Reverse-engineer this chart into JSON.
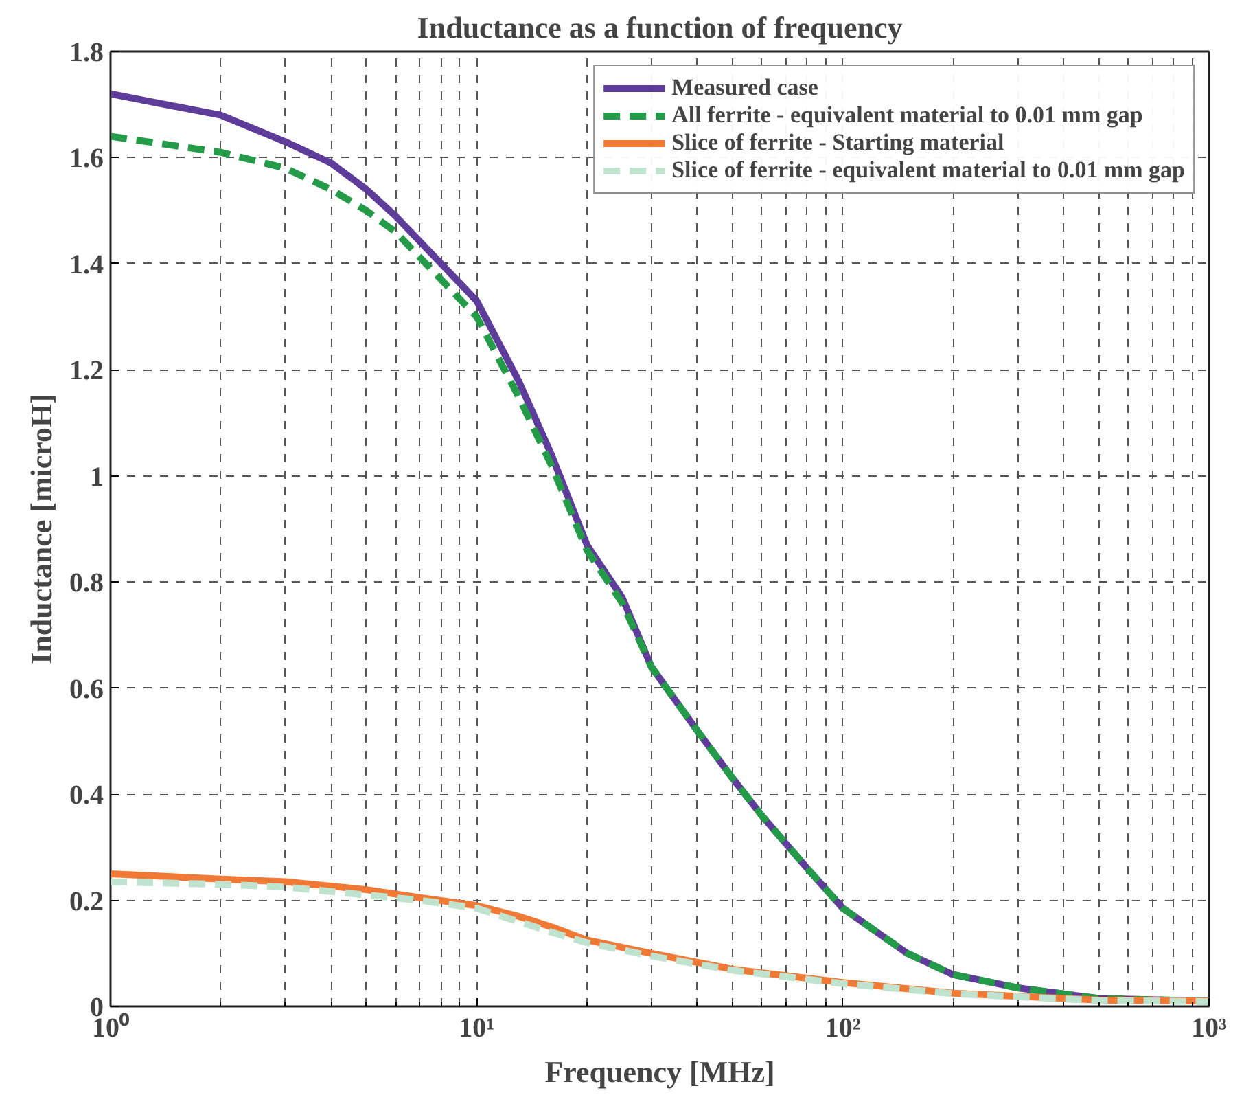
{
  "chart_data": {
    "type": "line",
    "title": "Inductance as a function of frequency",
    "xlabel": "Frequency [MHz]",
    "ylabel": "Inductance [microH]",
    "log": "x",
    "xlim": [
      1,
      1000
    ],
    "ylim": [
      0,
      1.8
    ],
    "xticks": [
      {
        "value": 1,
        "label": "10⁰"
      },
      {
        "value": 10,
        "label": "10¹"
      },
      {
        "value": 100,
        "label": "10²"
      },
      {
        "value": 1000,
        "label": "10³"
      }
    ],
    "yticks": [
      0,
      0.2,
      0.4,
      0.6,
      0.8,
      1,
      1.2,
      1.4,
      1.6,
      1.8
    ],
    "grid": true,
    "legend": "top right",
    "series": [
      {
        "name": "Measured case",
        "color": "#5e3c99",
        "line_style": "solid",
        "x": [
          1,
          2,
          3,
          4,
          5,
          6,
          8,
          10,
          13,
          16,
          20,
          25,
          30,
          40,
          50,
          60,
          80,
          100,
          150,
          200,
          300,
          500,
          1000
        ],
        "values": [
          1.72,
          1.68,
          1.63,
          1.59,
          1.54,
          1.49,
          1.4,
          1.33,
          1.18,
          1.04,
          0.87,
          0.77,
          0.64,
          0.52,
          0.43,
          0.36,
          0.26,
          0.185,
          0.1,
          0.06,
          0.035,
          0.015,
          0.01
        ]
      },
      {
        "name": "All ferrite - equivalent material to 0.01 mm gap",
        "color": "#239b48",
        "line_style": "dashed",
        "x": [
          1,
          2,
          3,
          4,
          5,
          6,
          8,
          10,
          13,
          16,
          20,
          25,
          30,
          40,
          50,
          60,
          80,
          100,
          150,
          200,
          300,
          500,
          1000
        ],
        "values": [
          1.64,
          1.61,
          1.58,
          1.54,
          1.5,
          1.46,
          1.37,
          1.3,
          1.15,
          1.02,
          0.86,
          0.76,
          0.64,
          0.52,
          0.43,
          0.36,
          0.26,
          0.185,
          0.1,
          0.06,
          0.035,
          0.015,
          0.01
        ]
      },
      {
        "name": "Slice of ferrite - Starting material",
        "color": "#f07a35",
        "line_style": "solid",
        "x": [
          1,
          2,
          3,
          5,
          7,
          10,
          13,
          16,
          20,
          30,
          50,
          100,
          200,
          500,
          1000
        ],
        "values": [
          0.25,
          0.24,
          0.235,
          0.22,
          0.205,
          0.19,
          0.17,
          0.15,
          0.125,
          0.1,
          0.07,
          0.045,
          0.025,
          0.012,
          0.01
        ]
      },
      {
        "name": "Slice of ferrite - equivalent material to 0.01 mm gap",
        "color": "#bfe3cf",
        "line_style": "dashed",
        "x": [
          1,
          2,
          3,
          5,
          7,
          10,
          13,
          16,
          20,
          30,
          50,
          100,
          200,
          500,
          1000
        ],
        "values": [
          0.235,
          0.23,
          0.225,
          0.21,
          0.2,
          0.185,
          0.16,
          0.14,
          0.12,
          0.095,
          0.068,
          0.043,
          0.024,
          0.011,
          0.009
        ]
      }
    ]
  }
}
